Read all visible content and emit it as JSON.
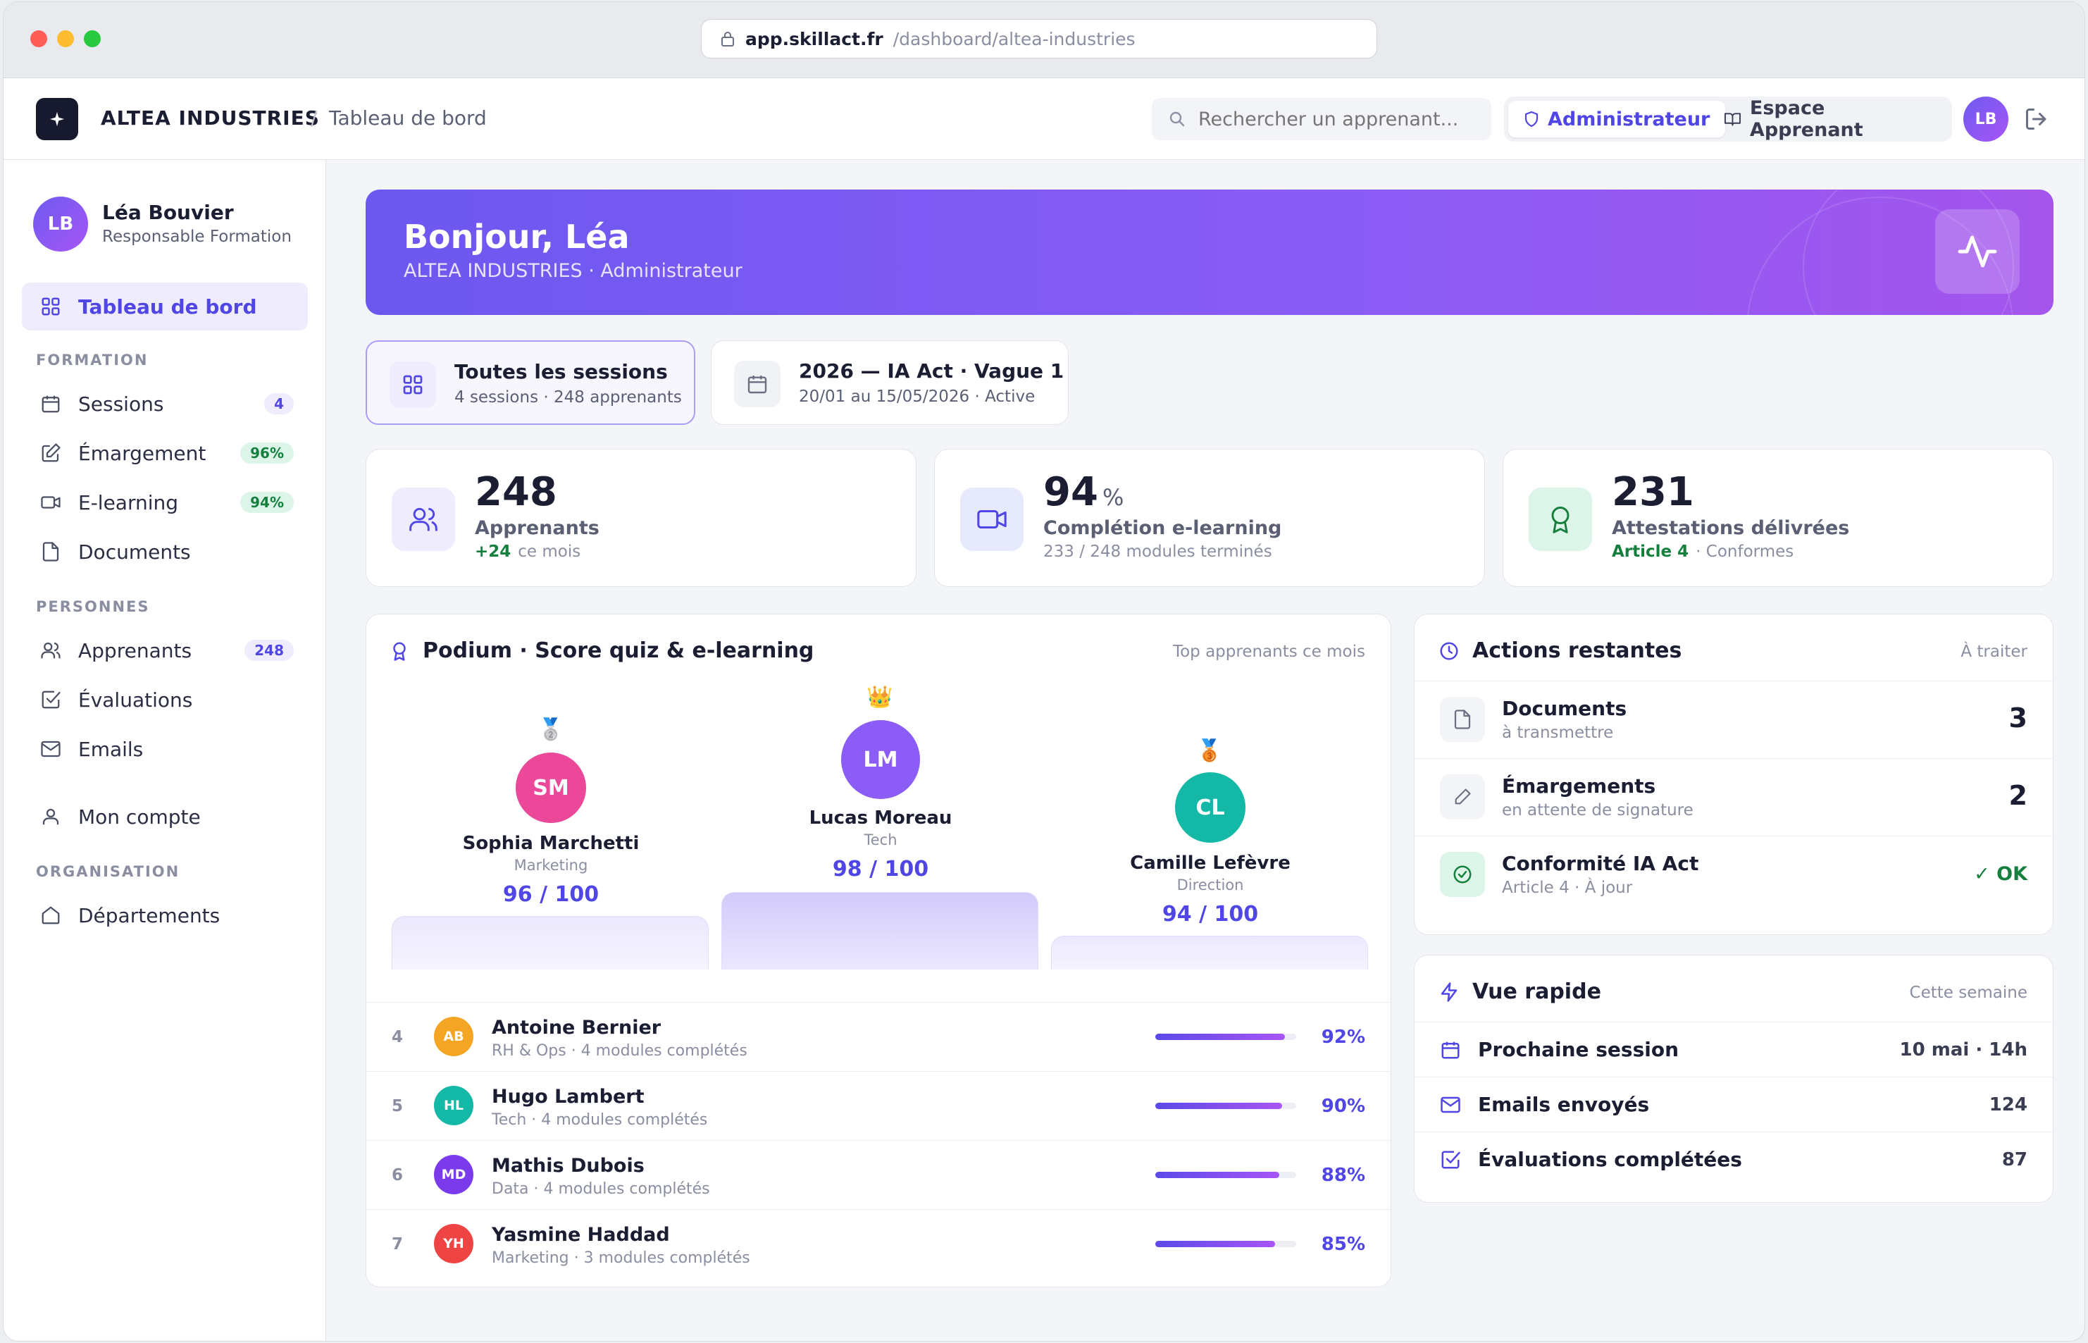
{
  "browser": {
    "host": "app.skillact.fr",
    "path": "/dashboard/altea-industries"
  },
  "topbar": {
    "org": "ALTEA INDUSTRIES",
    "separator": "/",
    "crumb": "Tableau de bord",
    "search_placeholder": "Rechercher un apprenant...",
    "role_admin": "Administrateur",
    "role_learner": "Espace Apprenant",
    "avatar": "LB"
  },
  "sidebar": {
    "user": {
      "initials": "LB",
      "name": "Léa Bouvier",
      "role": "Responsable Formation"
    },
    "dashboard": "Tableau de bord",
    "sections": {
      "formation": "FORMATION",
      "personnes": "PERSONNES",
      "organisation": "ORGANISATION"
    },
    "items": {
      "sessions": {
        "label": "Sessions",
        "badge": "4"
      },
      "emargement": {
        "label": "Émargement",
        "badge": "96%"
      },
      "elearning": {
        "label": "E-learning",
        "badge": "94%"
      },
      "documents": {
        "label": "Documents"
      },
      "apprenants": {
        "label": "Apprenants",
        "badge": "248"
      },
      "evaluations": {
        "label": "Évaluations"
      },
      "emails": {
        "label": "Emails"
      },
      "compte": {
        "label": "Mon compte"
      },
      "departements": {
        "label": "Départements"
      }
    }
  },
  "hero": {
    "greeting": "Bonjour, Léa",
    "subtitle": "ALTEA INDUSTRIES · Administrateur"
  },
  "sessions": [
    {
      "title": "Toutes les sessions",
      "sub": "4 sessions · 248 apprenants"
    },
    {
      "title": "2026 — IA Act · Vague 1",
      "sub": "20/01 au 15/05/2026 · Active"
    }
  ],
  "stats": [
    {
      "value": "248",
      "unit": "",
      "label": "Apprenants",
      "highlight": "+24",
      "sub": "ce mois",
      "color": "#15803d"
    },
    {
      "value": "94",
      "unit": "%",
      "label": "Complétion e-learning",
      "highlight": "",
      "sub": "233 / 248 modules terminés",
      "color": "#4f46e5"
    },
    {
      "value": "231",
      "unit": "",
      "label": "Attestations délivrées",
      "highlight": "Article 4",
      "sub": "· Conformes",
      "color": "#15803d"
    }
  ],
  "podium": {
    "title": "Podium · Score quiz & e-learning",
    "meta": "Top apprenants ce mois",
    "second": {
      "initials": "SM",
      "name": "Sophia Marchetti",
      "dept": "Marketing",
      "score": "96 / 100",
      "color": "#ec4899",
      "medal": "🥈"
    },
    "first": {
      "initials": "LM",
      "name": "Lucas Moreau",
      "dept": "Tech",
      "score": "98 / 100",
      "color": "#8b5cf6",
      "medal": "👑"
    },
    "third": {
      "initials": "CL",
      "name": "Camille Lefèvre",
      "dept": "Direction",
      "score": "94 / 100",
      "color": "#14b8a6",
      "medal": "🥉"
    }
  },
  "ranking": [
    {
      "rank": "4",
      "initials": "AB",
      "name": "Antoine Bernier",
      "sub": "RH & Ops · 4 modules complétés",
      "pct": "92%",
      "value": 0.92,
      "color": "#f5a524"
    },
    {
      "rank": "5",
      "initials": "HL",
      "name": "Hugo Lambert",
      "sub": "Tech · 4 modules complétés",
      "pct": "90%",
      "value": 0.9,
      "color": "#14b8a6"
    },
    {
      "rank": "6",
      "initials": "MD",
      "name": "Mathis Dubois",
      "sub": "Data · 4 modules complétés",
      "pct": "88%",
      "value": 0.88,
      "color": "#7c3aed"
    },
    {
      "rank": "7",
      "initials": "YH",
      "name": "Yasmine Haddad",
      "sub": "Marketing · 3 modules complétés",
      "pct": "85%",
      "value": 0.85,
      "color": "#ef4444"
    }
  ],
  "actions": {
    "title": "Actions restantes",
    "meta": "À traiter",
    "items": [
      {
        "title": "Documents",
        "sub": "à transmettre",
        "value": "3"
      },
      {
        "title": "Émargements",
        "sub": "en attente de signature",
        "value": "2"
      },
      {
        "title": "Conformité IA Act",
        "sub": "Article 4 · À jour",
        "value": "✓ OK"
      }
    ]
  },
  "quick": {
    "title": "Vue rapide",
    "meta": "Cette semaine",
    "items": [
      {
        "label": "Prochaine session",
        "value": "10 mai · 14h"
      },
      {
        "label": "Emails envoyés",
        "value": "124"
      },
      {
        "label": "Évaluations complétées",
        "value": "87"
      }
    ]
  },
  "colors": {
    "accent": "#4f46e5",
    "success": "#15803d",
    "hero_start": "#6c58ef",
    "hero_end": "#a455ec"
  }
}
